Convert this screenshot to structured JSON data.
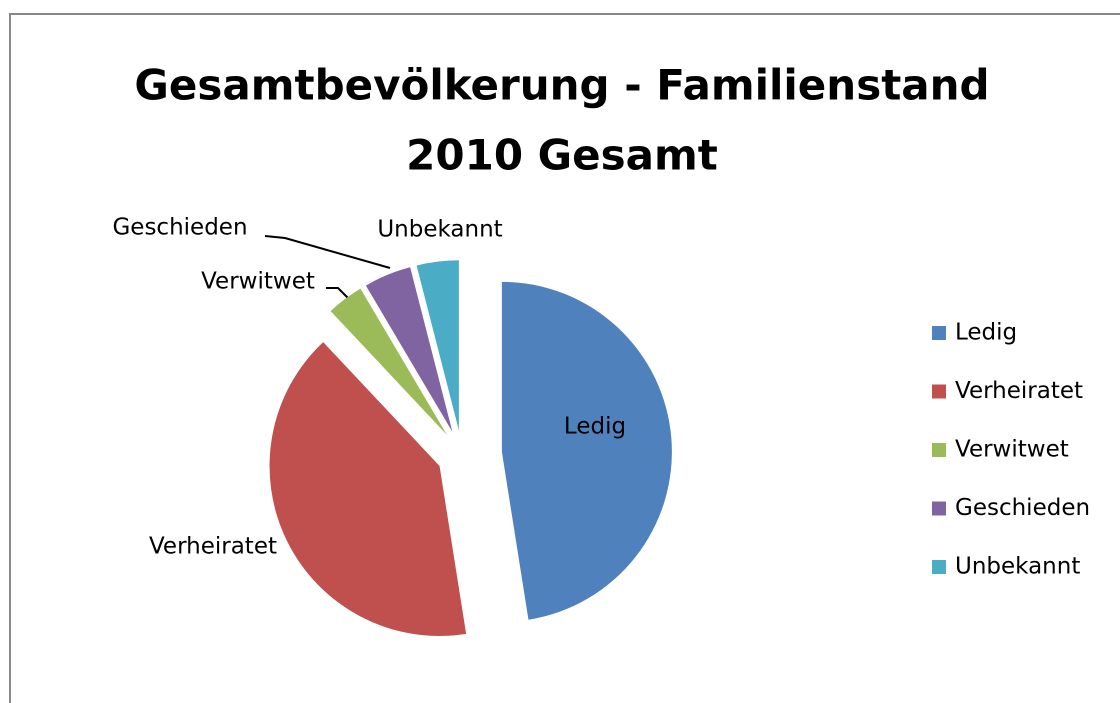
{
  "chart_data": {
    "type": "pie",
    "title": [
      "Gesamtbevölkerung - Familienstand",
      "2010 Gesamt"
    ],
    "categories": [
      "Ledig",
      "Verheiratet",
      "Verwitwet",
      "Geschieden",
      "Unbekannt"
    ],
    "values": [
      47.5,
      40.5,
      3.5,
      4.5,
      4
    ],
    "colors": [
      "#4f81bd",
      "#c0504d",
      "#9bbb59",
      "#8064a2",
      "#4bacc6"
    ],
    "legend": "right"
  }
}
